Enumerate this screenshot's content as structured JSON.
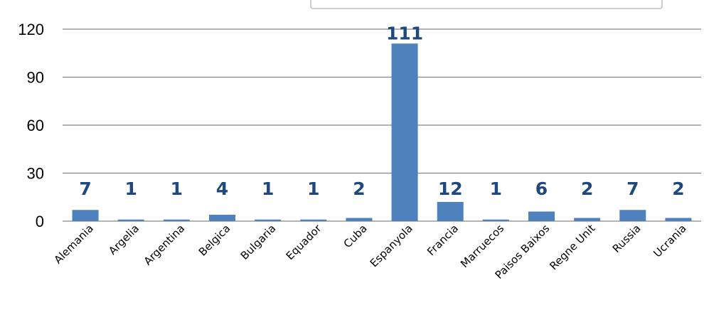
{
  "chart_data": {
    "type": "bar",
    "categories": [
      "Alemania",
      "Argelia",
      "Argentina",
      "Belgica",
      "Bulgaria",
      "Equador",
      "Cuba",
      "Espanyola",
      "Francia",
      "Marruecos",
      "Paisos Baixos",
      "Regne Unit",
      "Russia",
      "Ucrania"
    ],
    "values": [
      7,
      1,
      1,
      4,
      1,
      1,
      2,
      111,
      12,
      1,
      6,
      2,
      7,
      2
    ],
    "data_labels": [
      "7",
      "1",
      "1",
      "4",
      "1",
      "1",
      "2",
      "111",
      "12",
      "1",
      "6",
      "2",
      "7",
      "2"
    ],
    "y_ticks": [
      "0",
      "30",
      "60",
      "90",
      "120"
    ],
    "ylim": [
      0,
      120
    ],
    "grid": true,
    "legend": "none",
    "bar_color": "#4f81bd",
    "label_color": "#1f497d",
    "grid_color": "#868686"
  }
}
